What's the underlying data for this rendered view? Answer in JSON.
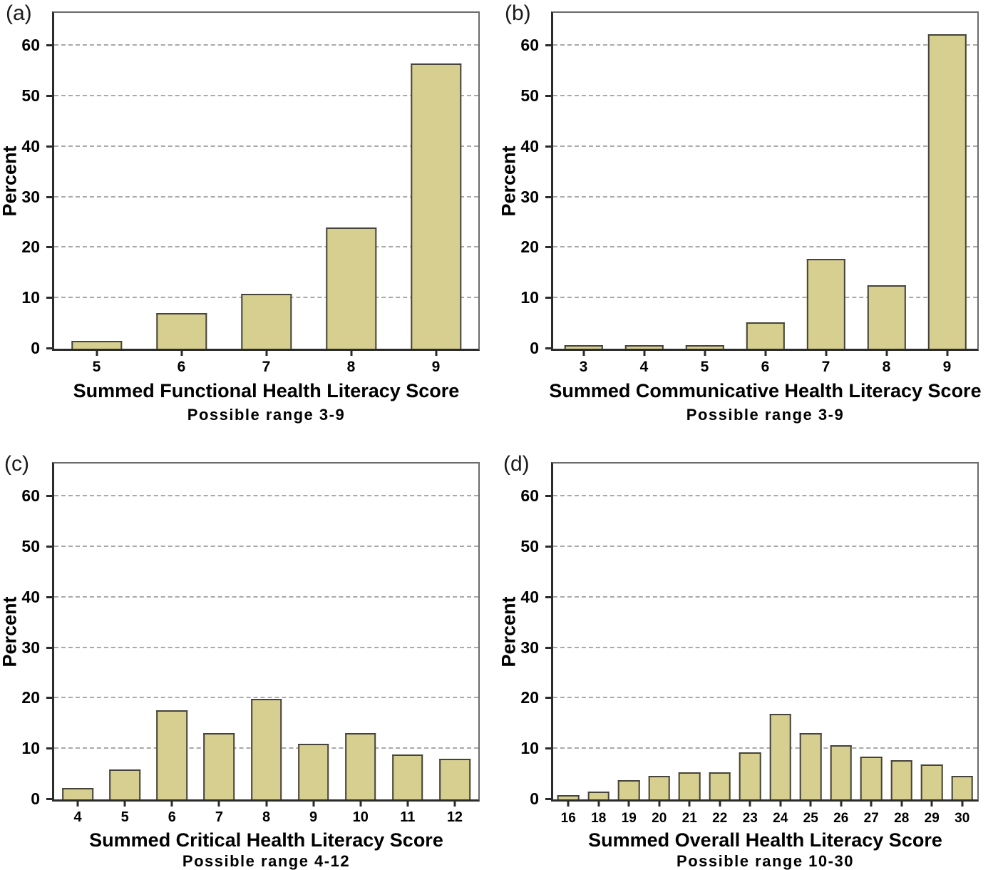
{
  "style": {
    "bar_fill": "#d7cf90",
    "bar_border": "#45433a",
    "grid_color": "#a9a9a9",
    "frame_color": "#6b6b6b",
    "axis_color": "#2b2b2b",
    "text_color": "#000000",
    "background": "#ffffff"
  },
  "chart_data": [
    {
      "type": "bar",
      "panel_label": "(a)",
      "xlabel": "Summed Functional Health Literacy Score",
      "subtitle": "Possible range 3-9",
      "ylabel": "Percent",
      "categories": [
        "5",
        "6",
        "7",
        "8",
        "9"
      ],
      "values": [
        1.5,
        7.0,
        10.9,
        24.0,
        56.5
      ],
      "yticks": [
        0,
        10,
        20,
        30,
        40,
        50,
        60
      ],
      "ylim": [
        0,
        66.5
      ],
      "grid": "dashed-horizontal",
      "legend": "none",
      "bar_width_frac": 0.6
    },
    {
      "type": "bar",
      "panel_label": "(b)",
      "xlabel": "Summed Communicative Health Literacy Score",
      "subtitle": "Possible range 3-9",
      "ylabel": "Percent",
      "categories": [
        "3",
        "4",
        "5",
        "6",
        "7",
        "8",
        "9"
      ],
      "values": [
        0.7,
        0.7,
        0.7,
        5.2,
        17.8,
        12.6,
        62.2
      ],
      "yticks": [
        0,
        10,
        20,
        30,
        40,
        50,
        60
      ],
      "ylim": [
        0,
        66.5
      ],
      "grid": "dashed-horizontal",
      "legend": "none",
      "bar_width_frac": 0.64
    },
    {
      "type": "bar",
      "panel_label": "(c)",
      "xlabel": "Summed Critical Health Literacy Score",
      "subtitle": "Possible range 4-12",
      "ylabel": "Percent",
      "categories": [
        "4",
        "5",
        "6",
        "7",
        "8",
        "9",
        "10",
        "11",
        "12"
      ],
      "values": [
        2.2,
        5.9,
        17.6,
        13.2,
        19.9,
        11.0,
        13.2,
        8.9,
        8.1
      ],
      "yticks": [
        0,
        10,
        20,
        30,
        40,
        50,
        60
      ],
      "ylim": [
        0,
        66.5
      ],
      "grid": "dashed-horizontal",
      "legend": "none",
      "bar_width_frac": 0.66
    },
    {
      "type": "bar",
      "panel_label": "(d)",
      "xlabel": "Summed Overall Health Literacy Score",
      "subtitle": "Possible range 10-30",
      "ylabel": "Percent",
      "categories": [
        "16",
        "18",
        "19",
        "20",
        "21",
        "22",
        "23",
        "24",
        "25",
        "26",
        "27",
        "28",
        "29",
        "30"
      ],
      "values": [
        0.8,
        1.5,
        3.8,
        4.6,
        5.4,
        5.4,
        9.3,
        17.0,
        13.1,
        10.8,
        8.5,
        7.7,
        6.9,
        4.6
      ],
      "yticks": [
        0,
        10,
        20,
        30,
        40,
        50,
        60
      ],
      "ylim": [
        0,
        66.5
      ],
      "grid": "dashed-horizontal",
      "legend": "none",
      "bar_width_frac": 0.72
    }
  ]
}
